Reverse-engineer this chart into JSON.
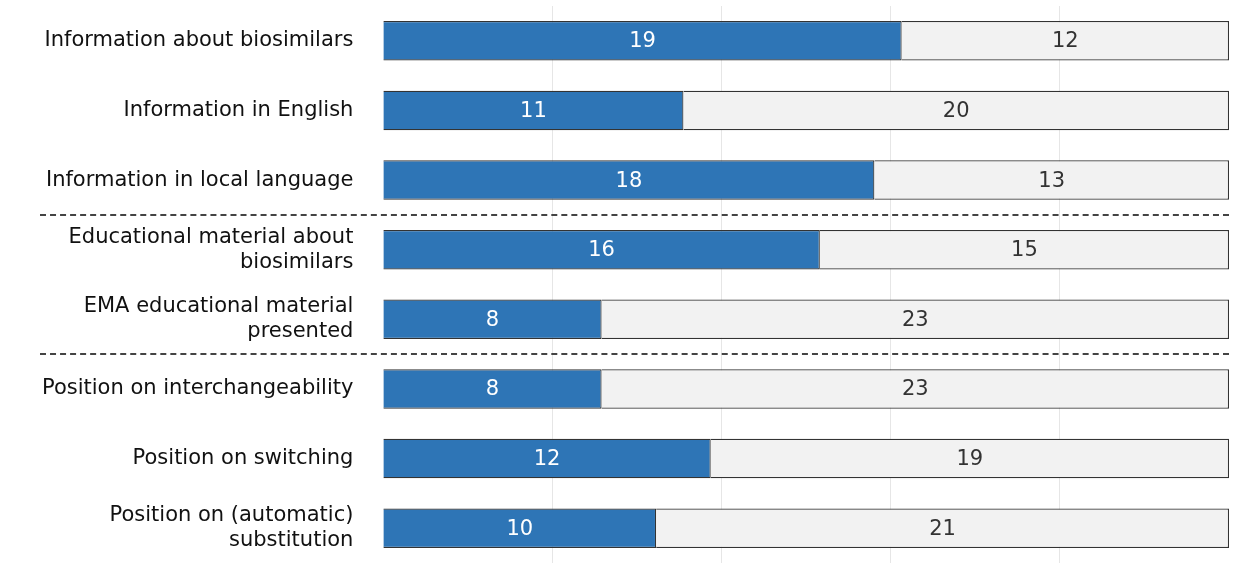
{
  "chart_data": {
    "type": "bar",
    "orientation": "horizontal",
    "stacked": true,
    "categories": [
      "Information about biosimilars",
      "Information in English",
      "Information in local language",
      "Educational material about biosimilars",
      "EMA educational material presented",
      "Position on interchangeability",
      "Position on switching",
      "Position on (automatic) substitution"
    ],
    "series": [
      {
        "color": "#2e75b6",
        "values": [
          19,
          11,
          18,
          16,
          8,
          8,
          12,
          10
        ]
      },
      {
        "color": "#f2f2f2",
        "values": [
          12,
          20,
          13,
          15,
          23,
          23,
          19,
          21
        ]
      }
    ],
    "xlim": [
      0,
      31
    ],
    "xticks": [
      {
        "value": 6.2,
        "label": null
      },
      {
        "value": 12.4,
        "label": null
      },
      {
        "value": 18.6,
        "label": null
      },
      {
        "value": 24.8,
        "label": null
      }
    ],
    "grid": "x",
    "tick_labels": "y",
    "data_labels": true,
    "legend": false
  }
}
